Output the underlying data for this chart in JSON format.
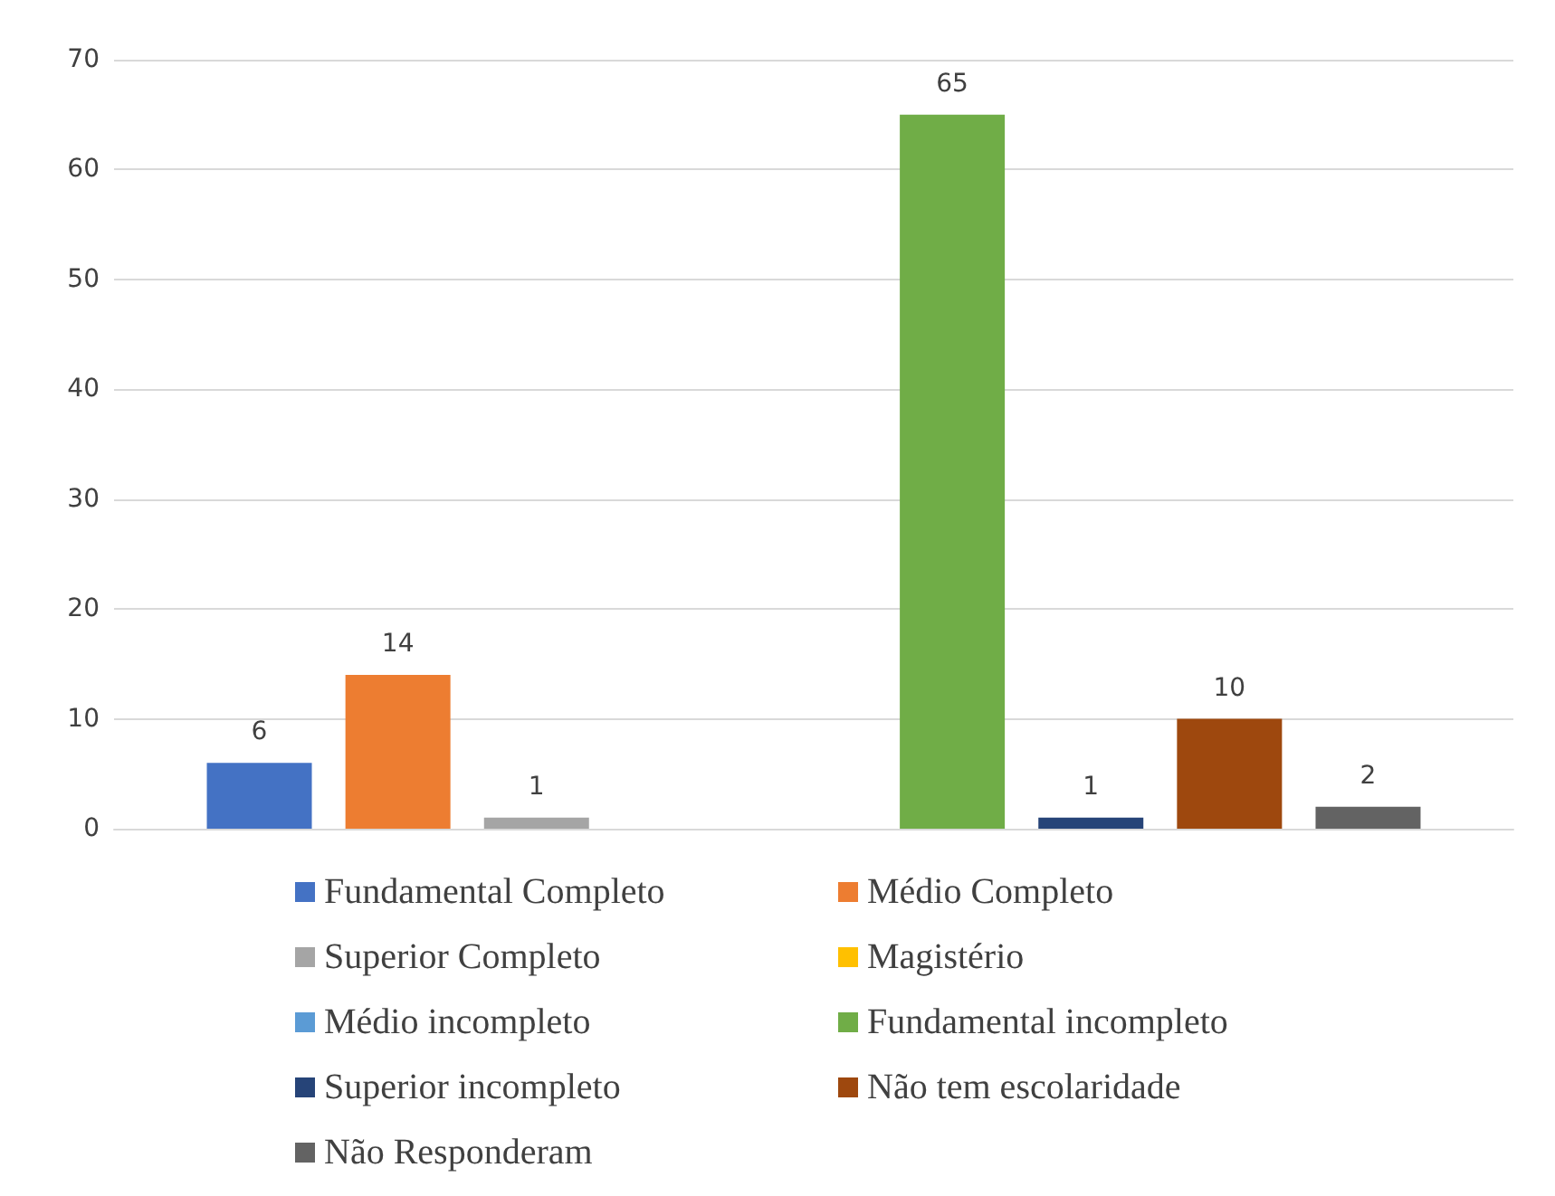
{
  "chart_data": {
    "type": "bar",
    "categories": [
      null
    ],
    "series": [
      {
        "name": "Fundamental Completo",
        "color": "#4472c4",
        "values": [
          6
        ],
        "value_labels": [
          "6"
        ]
      },
      {
        "name": "Médio Completo",
        "color": "#ed7d31",
        "values": [
          14
        ],
        "value_labels": [
          "14"
        ]
      },
      {
        "name": "Superior Completo",
        "color": "#a5a5a5",
        "values": [
          1
        ],
        "value_labels": [
          "1"
        ]
      },
      {
        "name": "Magistério",
        "color": "#ffc000",
        "values": [
          0
        ],
        "value_labels": [
          null
        ]
      },
      {
        "name": "Médio incompleto",
        "color": "#5b9bd5",
        "values": [
          0
        ],
        "value_labels": [
          null
        ]
      },
      {
        "name": "Fundamental incompleto",
        "color": "#70ad47",
        "values": [
          65
        ],
        "value_labels": [
          "65"
        ]
      },
      {
        "name": "Superior incompleto",
        "color": "#264478",
        "values": [
          1
        ],
        "value_labels": [
          "1"
        ]
      },
      {
        "name": "Não tem escolaridade",
        "color": "#9e480e",
        "values": [
          10
        ],
        "value_labels": [
          "10"
        ]
      },
      {
        "name": "Não Responderam",
        "color": "#636363",
        "values": [
          2
        ],
        "value_labels": [
          "2"
        ]
      }
    ],
    "ylim": [
      0,
      70
    ],
    "yticks": [
      0,
      10,
      20,
      30,
      40,
      50,
      60,
      70
    ],
    "grid": "y",
    "legend": "bottom"
  }
}
